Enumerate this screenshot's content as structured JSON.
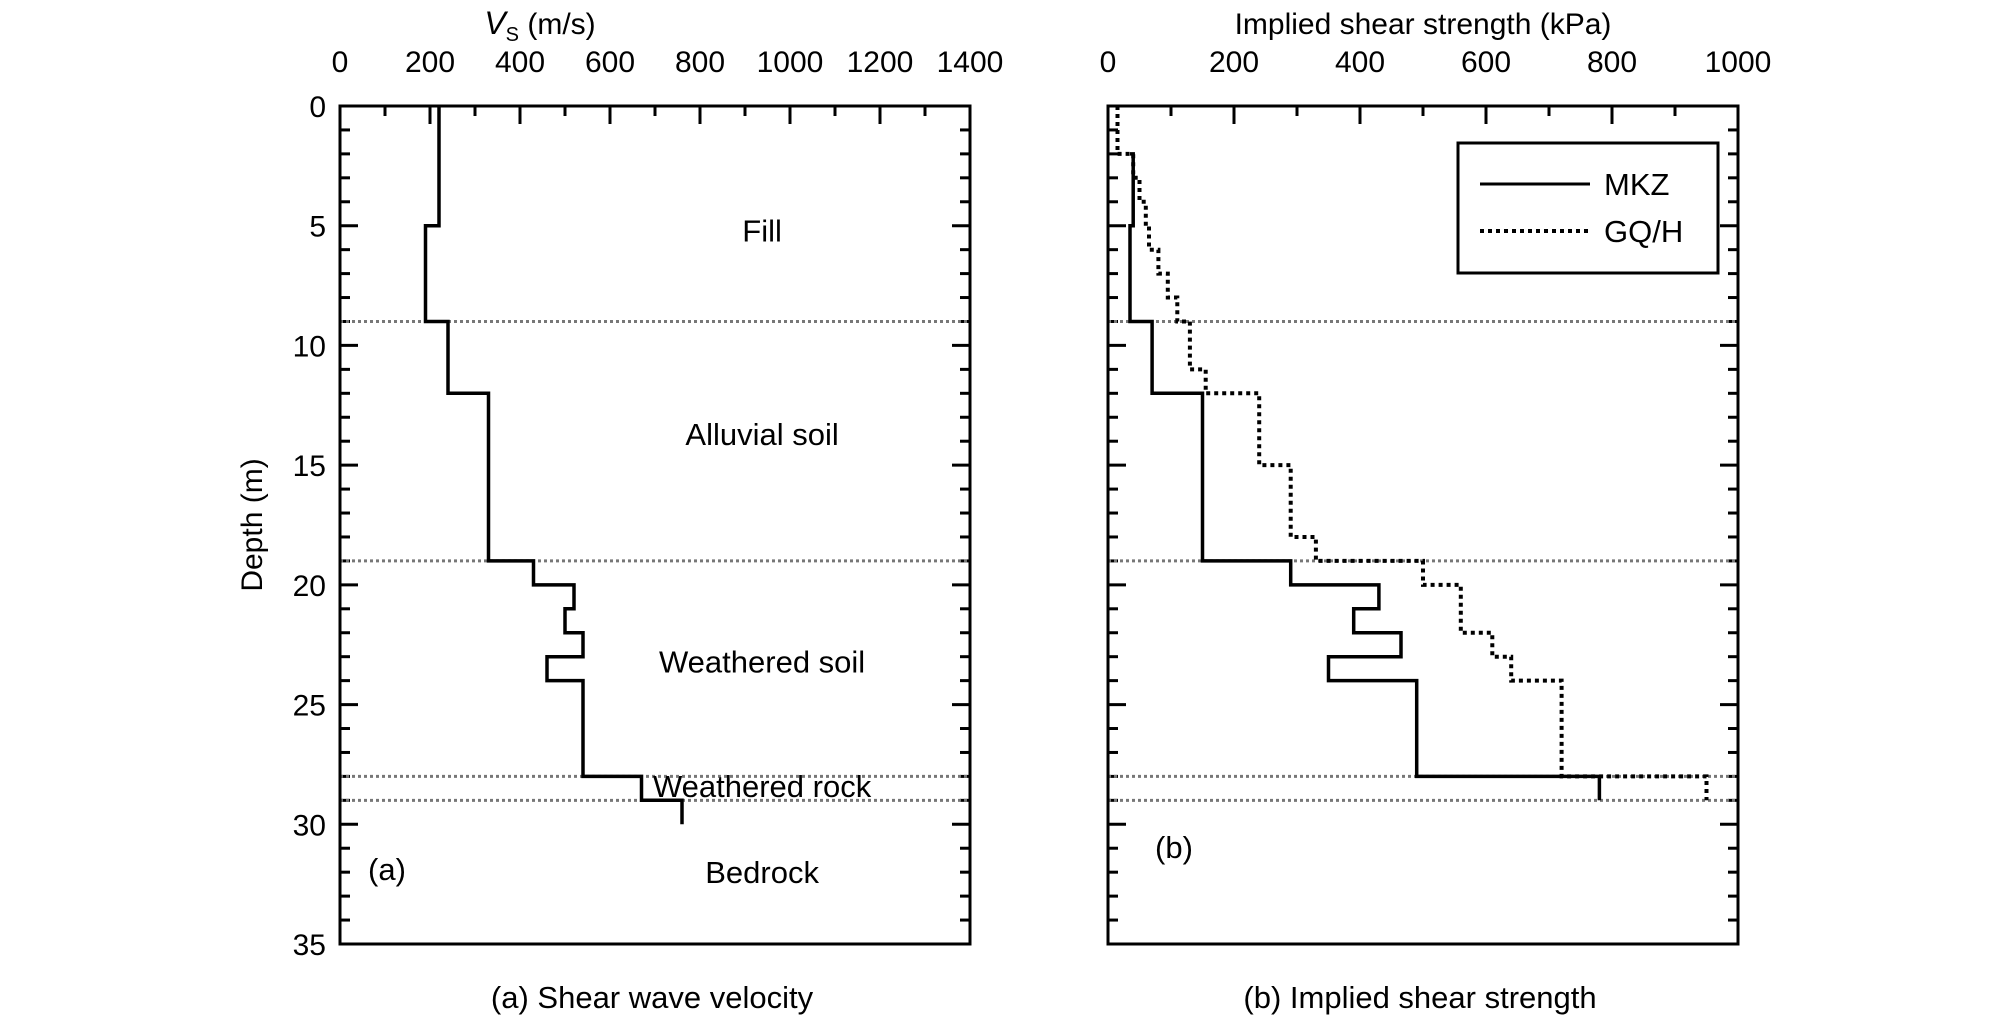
{
  "chart_data": [
    {
      "type": "line",
      "panel_tag": "(a)",
      "caption": "(a) Shear wave velocity",
      "xlabel_main": "V",
      "xlabel_sub": "S",
      "xlabel_unit": " (m/s)",
      "ylabel": "Depth (m)",
      "x_ticks": [
        0,
        200,
        400,
        600,
        800,
        1000,
        1200,
        1400
      ],
      "y_ticks": [
        0,
        5,
        10,
        15,
        20,
        25,
        30,
        35
      ],
      "xlim": [
        0,
        1400
      ],
      "ylim": [
        0,
        35
      ],
      "x_axis_position": "top",
      "y_inverted": true,
      "layer_boundaries": [
        9,
        19,
        28,
        29
      ],
      "zones": [
        {
          "label": "Fill",
          "depth": 5.2
        },
        {
          "label": "Alluvial soil",
          "depth": 13.7
        },
        {
          "label": "Weathered soil",
          "depth": 23.2
        },
        {
          "label": "Weathered rock",
          "depth": 28.4
        },
        {
          "label": "Bedrock",
          "depth": 32
        }
      ],
      "series": [
        {
          "style": "solid",
          "points": [
            [
              220,
              0
            ],
            [
              220,
              5
            ],
            [
              190,
              5
            ],
            [
              190,
              9
            ],
            [
              240,
              9
            ],
            [
              240,
              12
            ],
            [
              330,
              12
            ],
            [
              330,
              19
            ],
            [
              430,
              19
            ],
            [
              430,
              20
            ],
            [
              520,
              20
            ],
            [
              520,
              21
            ],
            [
              500,
              21
            ],
            [
              500,
              22
            ],
            [
              540,
              22
            ],
            [
              540,
              23
            ],
            [
              460,
              23
            ],
            [
              460,
              24
            ],
            [
              540,
              24
            ],
            [
              540,
              28
            ],
            [
              670,
              28
            ],
            [
              670,
              29
            ],
            [
              760,
              29
            ],
            [
              760,
              30
            ]
          ]
        }
      ]
    },
    {
      "type": "line",
      "panel_tag": "(b)",
      "caption": "(b) Implied shear strength",
      "xlabel": "Implied shear strength (kPa)",
      "x_ticks": [
        0,
        200,
        400,
        600,
        800,
        1000
      ],
      "xlim": [
        0,
        1000
      ],
      "ylim": [
        0,
        35
      ],
      "x_axis_position": "top",
      "y_inverted": true,
      "legend_position": "top-right",
      "layer_boundaries": [
        9,
        19,
        28,
        29
      ],
      "series": [
        {
          "name": "MKZ",
          "style": "solid",
          "points": [
            [
              35,
              2
            ],
            [
              40,
              2
            ],
            [
              40,
              5
            ],
            [
              35,
              5
            ],
            [
              35,
              9
            ],
            [
              70,
              9
            ],
            [
              70,
              12
            ],
            [
              150,
              12
            ],
            [
              150,
              19
            ],
            [
              290,
              19
            ],
            [
              290,
              20
            ],
            [
              430,
              20
            ],
            [
              430,
              21
            ],
            [
              390,
              21
            ],
            [
              390,
              22
            ],
            [
              465,
              22
            ],
            [
              465,
              23
            ],
            [
              350,
              23
            ],
            [
              350,
              24
            ],
            [
              490,
              24
            ],
            [
              490,
              28
            ],
            [
              780,
              28
            ],
            [
              780,
              29
            ]
          ]
        },
        {
          "name": "GQ/H",
          "style": "dotted",
          "points": [
            [
              15,
              0
            ],
            [
              15,
              2
            ],
            [
              40,
              2
            ],
            [
              40,
              3
            ],
            [
              50,
              3
            ],
            [
              50,
              4
            ],
            [
              60,
              4
            ],
            [
              60,
              5
            ],
            [
              65,
              5
            ],
            [
              65,
              6
            ],
            [
              80,
              6
            ],
            [
              80,
              7
            ],
            [
              95,
              7
            ],
            [
              95,
              8
            ],
            [
              110,
              8
            ],
            [
              110,
              9
            ],
            [
              130,
              9
            ],
            [
              130,
              11
            ],
            [
              155,
              11
            ],
            [
              155,
              12
            ],
            [
              240,
              12
            ],
            [
              240,
              15
            ],
            [
              290,
              15
            ],
            [
              290,
              18
            ],
            [
              330,
              18
            ],
            [
              330,
              19
            ],
            [
              500,
              19
            ],
            [
              500,
              20
            ],
            [
              560,
              20
            ],
            [
              560,
              22
            ],
            [
              610,
              22
            ],
            [
              610,
              23
            ],
            [
              640,
              23
            ],
            [
              640,
              24
            ],
            [
              720,
              24
            ],
            [
              720,
              28
            ],
            [
              950,
              28
            ],
            [
              950,
              29
            ]
          ]
        }
      ]
    }
  ]
}
